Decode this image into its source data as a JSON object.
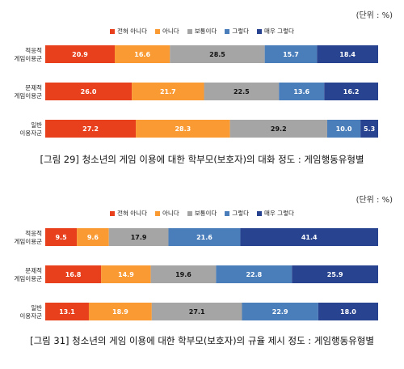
{
  "colors": [
    "#e8401c",
    "#f99a33",
    "#a5a5a5",
    "#4a7ebb",
    "#28438f"
  ],
  "legend": [
    "전혀 아니다",
    "아니다",
    "보통이다",
    "그렇다",
    "매우 그렇다"
  ],
  "chart_data": [
    {
      "type": "bar",
      "orientation": "horizontal-stacked-100",
      "unit_label": "(단위 : %)",
      "categories": [
        [
          "적응적",
          "게임이용군"
        ],
        [
          "문제적",
          "게임이용군"
        ],
        [
          "일반",
          "이용자군"
        ]
      ],
      "series": [
        {
          "name": "전혀 아니다",
          "values": [
            20.9,
            26.0,
            27.2
          ]
        },
        {
          "name": "아니다",
          "values": [
            16.6,
            21.7,
            28.3
          ]
        },
        {
          "name": "보통이다",
          "values": [
            28.5,
            22.5,
            29.2
          ]
        },
        {
          "name": "그렇다",
          "values": [
            15.7,
            13.6,
            10.0
          ]
        },
        {
          "name": "매우 그렇다",
          "values": [
            18.4,
            16.2,
            5.3
          ]
        }
      ],
      "caption": "[그림 29] 청소년의 게임 이용에 대한 학부모(보호자)의 대화 정도 : 게임행동유형별"
    },
    {
      "type": "bar",
      "orientation": "horizontal-stacked-100",
      "unit_label": "(단위 : %)",
      "categories": [
        [
          "적응적",
          "게임이용군"
        ],
        [
          "문제적",
          "게임이용군"
        ],
        [
          "일반",
          "이용자군"
        ]
      ],
      "series": [
        {
          "name": "전혀 아니다",
          "values": [
            9.5,
            16.8,
            13.1
          ]
        },
        {
          "name": "아니다",
          "values": [
            9.6,
            14.9,
            18.9
          ]
        },
        {
          "name": "보통이다",
          "values": [
            17.9,
            19.6,
            27.1
          ]
        },
        {
          "name": "그렇다",
          "values": [
            21.6,
            22.8,
            22.9
          ]
        },
        {
          "name": "매우 그렇다",
          "values": [
            41.4,
            25.9,
            18.0
          ]
        }
      ],
      "caption": "[그림 31] 청소년의 게임 이용에 대한 학부모(보호자)의 규율 제시 정도 : 게임행동유형별"
    }
  ]
}
